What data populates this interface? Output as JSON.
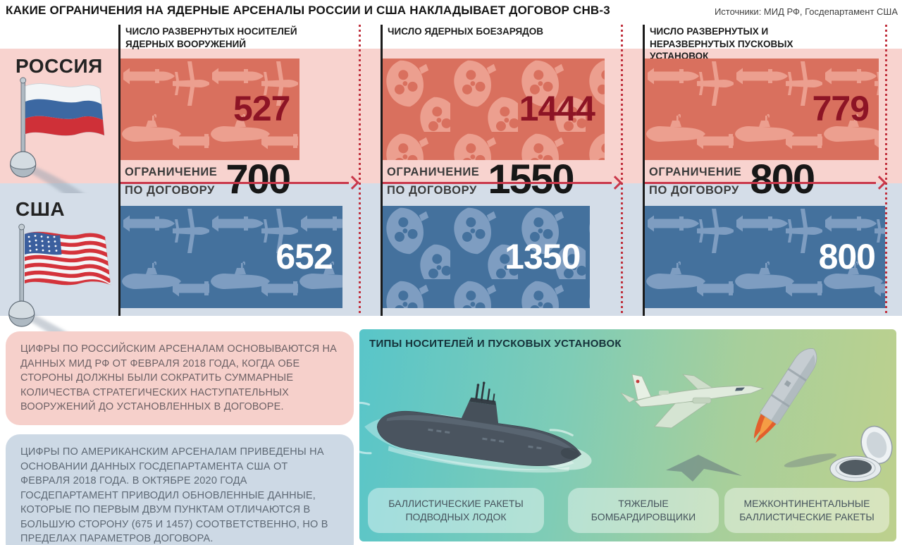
{
  "title": "КАКИЕ ОГРАНИЧЕНИЯ НА ЯДЕРНЫЕ АРСЕНАЛЫ РОССИИ И США НАКЛАДЫВАЕТ ДОГОВОР СНВ-3",
  "sources": "Источники: МИД РФ, Госдепартамент США",
  "left_labels": {
    "russia": "РОССИЯ",
    "usa": "США"
  },
  "limit_label": {
    "line1": "ОГРАНИЧЕНИЕ",
    "line2": "ПО ДОГОВОРУ"
  },
  "columns": [
    {
      "header": "ЧИСЛО РАЗВЕРНУТЫХ НОСИТЕЛЕЙ ЯДЕРНЫХ ВООРУЖЕНИЙ",
      "russia_value": "527",
      "usa_value": "652",
      "limit": "700",
      "pattern": "weapons"
    },
    {
      "header": "ЧИСЛО ЯДЕРНЫХ БОЕЗАРЯДОВ",
      "russia_value": "1444",
      "usa_value": "1350",
      "limit": "1550",
      "pattern": "warheads"
    },
    {
      "header": "ЧИСЛО РАЗВЕРНУТЫХ И НЕРАЗВЕРНУТЫХ ПУСКОВЫХ УСТАНОВОК",
      "russia_value": "779",
      "usa_value": "800",
      "limit": "800",
      "pattern": "weapons"
    }
  ],
  "chart_data": {
    "type": "bar",
    "categories": [
      "ЧИСЛО РАЗВЕРНУТЫХ НОСИТЕЛЕЙ ЯДЕРНЫХ ВООРУЖЕНИЙ",
      "ЧИСЛО ЯДЕРНЫХ БОЕЗАРЯДОВ",
      "ЧИСЛО РАЗВЕРНУТЫХ И НЕРАЗВЕРНУТЫХ ПУСКОВЫХ УСТАНОВОК"
    ],
    "series": [
      {
        "name": "РОССИЯ",
        "values": [
          527,
          1444,
          779
        ]
      },
      {
        "name": "США",
        "values": [
          652,
          1350,
          800
        ]
      }
    ],
    "limits": [
      700,
      1550,
      800
    ],
    "limit_label": "ОГРАНИЧЕНИЕ ПО ДОГОВОРУ",
    "title": "КАКИЕ ОГРАНИЧЕНИЯ НА ЯДЕРНЫЕ АРСЕНАЛЫ РОССИИ И США НАКЛАДЫВАЕТ ДОГОВОР СНВ-3",
    "orientation": "horizontal",
    "bar_scale": "width proportional to value/limit"
  },
  "notes": {
    "russia": "ЦИФРЫ ПО РОССИЙСКИМ АРСЕНАЛАМ ОСНОВЫВАЮТСЯ НА ДАННЫХ МИД РФ ОТ ФЕВРАЛЯ 2018 ГОДА, КОГДА ОБЕ СТОРОНЫ ДОЛЖНЫ БЫЛИ СОКРАТИТЬ СУММАРНЫЕ КОЛИЧЕСТВА СТРАТЕГИЧЕСКИХ НАСТУПАТЕЛЬНЫХ ВООРУЖЕНИЙ ДО УСТАНОВЛЕННЫХ В ДОГОВОРЕ.",
    "usa": "ЦИФРЫ ПО АМЕРИКАНСКИМ АРСЕНАЛАМ ПРИВЕДЕНЫ НА ОСНОВАНИИ ДАННЫХ ГОСДЕПАРТАМЕНТА США ОТ ФЕВРАЛЯ 2018 ГОДА. В ОКТЯБРЕ 2020 ГОДА ГОСДЕПАРТАМЕНТ ПРИВОДИЛ ОБНОВЛЕННЫЕ ДАННЫЕ, КОТОРЫЕ ПО ПЕРВЫМ ДВУМ ПУНКТАМ ОТЛИЧАЮТСЯ В БОЛЬШУЮ СТОРОНУ (675 И 1457) СООТВЕТСТВЕННО, НО В ПРЕДЕЛАХ ПАРАМЕТРОВ ДОГОВОРА."
  },
  "types_panel": {
    "title": "ТИПЫ НОСИТЕЛЕЙ И ПУСКОВЫХ УСТАНОВОК",
    "items": [
      {
        "label": "БАЛЛИСТИЧЕСКИЕ РАКЕТЫ ПОДВОДНЫХ ЛОДОК",
        "icon": "submarine-illustration"
      },
      {
        "label": "ТЯЖЕЛЫЕ БОМБАРДИРОВЩИКИ",
        "icon": "bomber-illustration"
      },
      {
        "label": "МЕЖКОНТИНЕНТАЛЬНЫЕ БАЛЛИСТИЧЕСКИЕ РАКЕТЫ",
        "icon": "icbm-illustration"
      }
    ]
  },
  "colors": {
    "russia_band": "#f8d3cf",
    "russia_bar": "#d9705e",
    "russia_pattern": "#ec9f8f",
    "russia_value_text": "#8d1425",
    "usa_band": "#d4dde8",
    "usa_bar": "#44719d",
    "usa_pattern": "#7e9dc1",
    "usa_value_text": "#ffffff",
    "limit_line": "#c9374a"
  }
}
